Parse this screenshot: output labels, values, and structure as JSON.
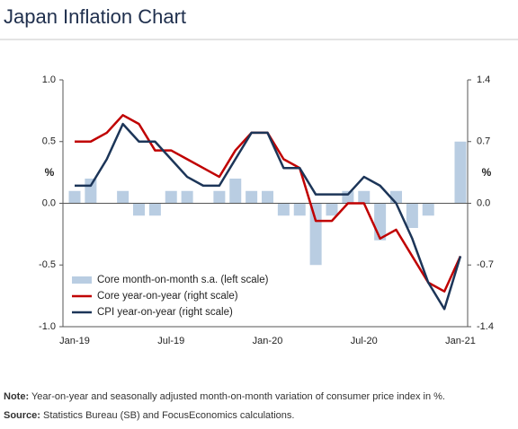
{
  "chart_data": {
    "type": "combo",
    "title": "Japan Inflation Chart",
    "categories": [
      "Jan-19",
      null,
      null,
      null,
      null,
      null,
      "Jul-19",
      null,
      null,
      null,
      null,
      null,
      "Jan-20",
      null,
      null,
      null,
      null,
      null,
      "Jul-20",
      null,
      null,
      null,
      null,
      null,
      "Jan-21"
    ],
    "series": [
      {
        "name": "Core month-on-month s.a. (left scale)",
        "type": "bar",
        "color": "#b9cde2",
        "axis": "y",
        "values": [
          0.1,
          0.2,
          0,
          0.1,
          -0.1,
          -0.1,
          0.1,
          0.1,
          0,
          0.1,
          0.2,
          0.1,
          0.1,
          -0.1,
          -0.1,
          -0.5,
          -0.1,
          0.1,
          0.1,
          -0.3,
          0.1,
          -0.2,
          -0.1,
          0,
          0.5
        ]
      },
      {
        "name": "Core year-on-year (right scale)",
        "type": "line",
        "color": "#c00000",
        "axis": "y2",
        "values": [
          0.7,
          0.7,
          0.8,
          1.0,
          0.9,
          0.6,
          0.6,
          0.5,
          0.4,
          0.3,
          0.6,
          0.8,
          0.8,
          0.5,
          0.4,
          -0.2,
          -0.2,
          0.0,
          0.0,
          -0.4,
          -0.3,
          -0.6,
          -0.9,
          -1.0,
          -0.6
        ]
      },
      {
        "name": "CPI year-on-year (right scale)",
        "type": "line",
        "color": "#1c3558",
        "axis": "y2",
        "values": [
          0.2,
          0.2,
          0.5,
          0.9,
          0.7,
          0.7,
          0.5,
          0.3,
          0.2,
          0.2,
          0.5,
          0.8,
          0.8,
          0.4,
          0.4,
          0.1,
          0.1,
          0.1,
          0.3,
          0.2,
          0.0,
          -0.4,
          -0.9,
          -1.2,
          -0.6
        ]
      }
    ],
    "ylim": [
      -1.0,
      1.0
    ],
    "yticks": [
      {
        "value": 1.0,
        "label": "1.0"
      },
      0.5,
      {
        "value": 0.0,
        "label": "0.0"
      },
      -0.5,
      {
        "value": -1.0,
        "label": "-1.0"
      }
    ],
    "ylabel": "%",
    "y2lim": [
      -1.4,
      1.4
    ],
    "y2ticks": [
      1.4,
      0.7,
      {
        "value": 0.0,
        "label": "0.0"
      },
      -0.7,
      -1.4
    ],
    "y2label": "%",
    "legend": "lower left",
    "note": {
      "label": "Note:",
      "text": "Year-on-year and seasonally adjusted month-on-month variation of consumer price index in %."
    },
    "source": {
      "label": "Source:",
      "text": "Statistics Bureau (SB) and FocusEconomics calculations."
    }
  }
}
